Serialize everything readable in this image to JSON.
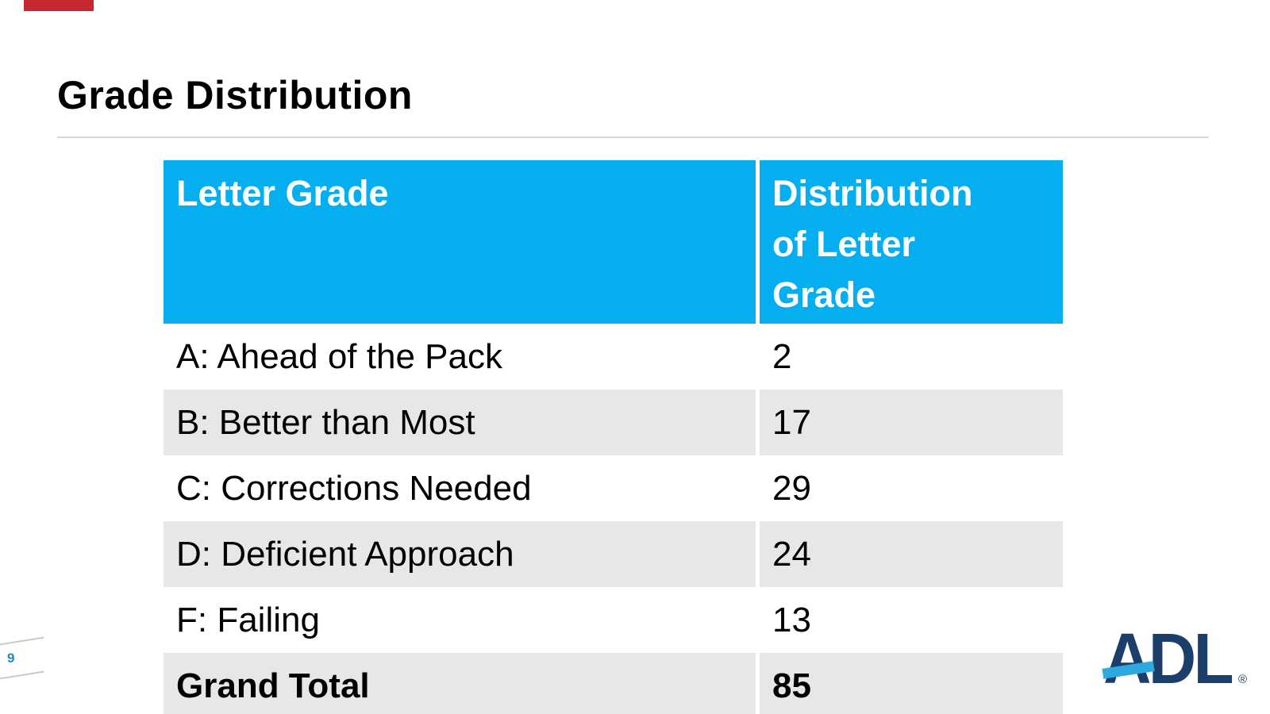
{
  "slide": {
    "title": "Grade Distribution"
  },
  "table": {
    "header": {
      "col1": "Letter Grade",
      "col2": "Distribution of Letter Grade"
    },
    "rows": [
      {
        "label": "A: Ahead of the Pack",
        "value": "2"
      },
      {
        "label": "B: Better than Most",
        "value": "17"
      },
      {
        "label": "C: Corrections Needed",
        "value": "29"
      },
      {
        "label": "D: Deficient Approach",
        "value": "24"
      },
      {
        "label": "F: Failing",
        "value": "13"
      }
    ],
    "total_row": {
      "label": "Grand Total",
      "value": "85"
    }
  },
  "footer": {
    "page_number": "9",
    "logo_text": "ADL",
    "logo_registered": "®"
  },
  "colors": {
    "header_blue": "#05aeef",
    "row_alt_gray": "#e6e7e8",
    "logo_navy": "#1c3e6b",
    "logo_light_blue": "#2ea9e0",
    "page_number_blue": "#2288cc",
    "top_red_accent": "#c5292f",
    "divider_gray": "#d6d6d6"
  }
}
